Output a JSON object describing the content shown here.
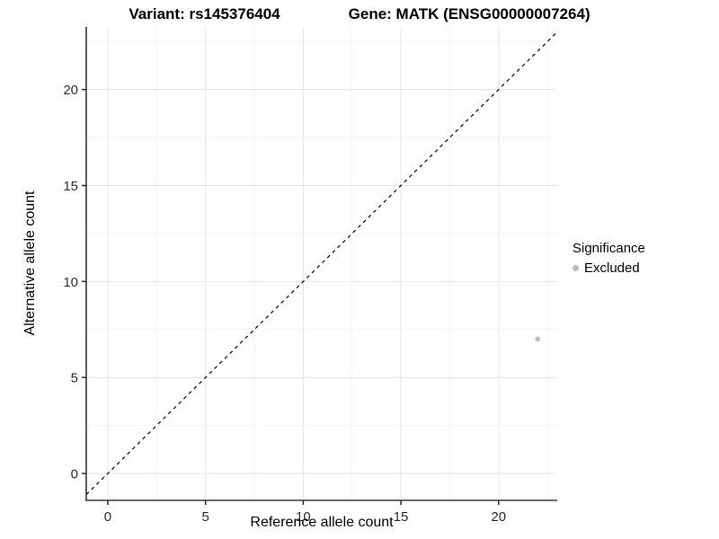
{
  "titles": {
    "variant": "Variant: rs145376404",
    "gene": "Gene: MATK (ENSG00000007264)"
  },
  "axes": {
    "x_label": "Reference allele count",
    "y_label": "Alternative allele count"
  },
  "legend": {
    "title": "Significance",
    "items": [
      {
        "label": "Excluded",
        "color": "#bdbdbd"
      }
    ]
  },
  "colors": {
    "background": "#ffffff",
    "axis_line": "#333333",
    "tick_label": "#2b2b2b",
    "grid_major": "#e4e4e4",
    "grid_minor": "#f2f2f2",
    "identity_line": "#000000",
    "point": "#bdbdbd"
  },
  "chart_data": {
    "type": "scatter",
    "title": "Variant: rs145376404   Gene: MATK (ENSG00000007264)",
    "xlabel": "Reference allele count",
    "ylabel": "Alternative allele count",
    "xlim": [
      -1.1,
      23.0
    ],
    "ylim": [
      -1.4,
      23.26
    ],
    "xticks": [
      0,
      5,
      10,
      15,
      20
    ],
    "yticks": [
      0,
      5,
      10,
      15,
      20
    ],
    "minor_ticks_x": [
      2.5,
      7.5,
      12.5,
      17.5,
      22.5
    ],
    "minor_ticks_y": [
      2.5,
      7.5,
      12.5,
      17.5,
      22.5
    ],
    "grid": true,
    "legend_position": "right",
    "identity_line": {
      "style": "dashed",
      "dash": "4 4",
      "color": "#000000",
      "meaning": "y = x"
    },
    "series": [
      {
        "name": "Excluded",
        "color": "#bdbdbd",
        "marker_radius": 2.8,
        "points": [
          {
            "x": 22,
            "y": 7
          }
        ]
      }
    ]
  }
}
